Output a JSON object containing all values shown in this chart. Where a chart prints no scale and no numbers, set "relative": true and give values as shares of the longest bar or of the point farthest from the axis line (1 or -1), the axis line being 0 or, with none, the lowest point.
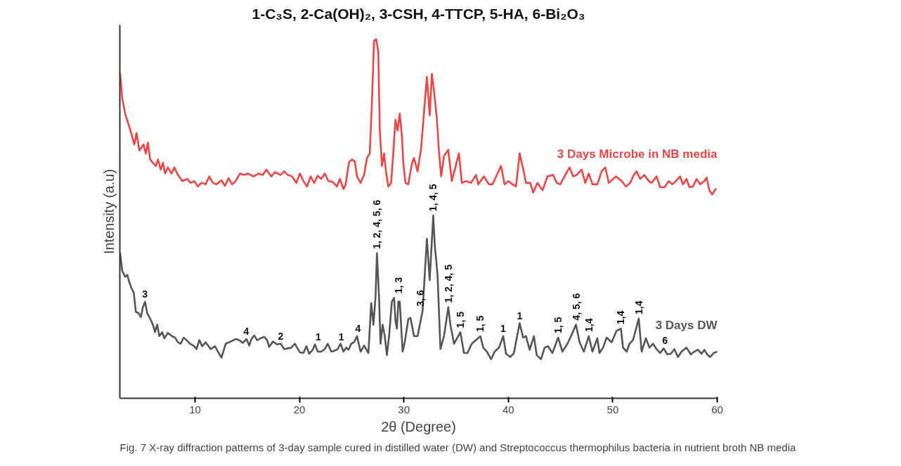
{
  "chart_data": {
    "type": "line",
    "relative": true,
    "title": "1-C₃S, 2-Ca(OH)₂, 3-CSH, 4-TTCP, 5-HA, 6-Bi₂O₃",
    "xlabel": "2θ (Degree)",
    "ylabel": "Intensity (a.u)",
    "xlim": [
      2.8,
      60
    ],
    "xticks": [
      10,
      20,
      30,
      40,
      50,
      60
    ],
    "grid": false,
    "legend": false,
    "marker": "none",
    "line_style": "solid",
    "series": [
      {
        "name": "3 Days Microbe in NB media",
        "color": "#f04444",
        "x": [
          2.83,
          3.03,
          3.31,
          3.65,
          3.99,
          4.19,
          4.4,
          4.67,
          5.08,
          5.29,
          5.49,
          5.7,
          6.24,
          6.45,
          6.72,
          6.93,
          7.13,
          7.4,
          7.75,
          8.02,
          8.29,
          8.77,
          9.25,
          9.59,
          9.93,
          10.27,
          10.61,
          11.02,
          11.37,
          11.71,
          12.05,
          12.53,
          12.87,
          13.21,
          13.55,
          13.89,
          14.3,
          14.71,
          15.05,
          15.6,
          16.08,
          16.49,
          16.83,
          17.31,
          17.65,
          18.2,
          18.54,
          18.88,
          19.29,
          19.7,
          20.04,
          20.38,
          20.72,
          21.07,
          21.41,
          21.75,
          22.09,
          22.43,
          22.77,
          23.18,
          23.59,
          23.87,
          24.21,
          24.41,
          24.75,
          25.03,
          25.3,
          25.51,
          25.85,
          26.19,
          26.46,
          26.73,
          26.94,
          27.14,
          27.35,
          27.55,
          27.69,
          27.9,
          28.1,
          28.31,
          28.51,
          28.78,
          28.99,
          29.19,
          29.4,
          29.6,
          29.81,
          29.95,
          30.15,
          30.42,
          30.77,
          30.97,
          31.31,
          31.65,
          32.2,
          32.47,
          32.68,
          32.88,
          33.16,
          33.36,
          33.57,
          33.84,
          34.25,
          34.59,
          35.27,
          35.55,
          35.96,
          36.43,
          36.91,
          37.12,
          37.66,
          38.14,
          38.48,
          39.3,
          39.64,
          39.99,
          40.4,
          40.74,
          41.08,
          41.42,
          41.69,
          42.1,
          42.38,
          42.79,
          43.27,
          43.74,
          44.29,
          44.63,
          44.97,
          45.52,
          45.86,
          46.2,
          46.54,
          47.02,
          47.36,
          47.7,
          48.05,
          48.52,
          48.93,
          49.28,
          49.62,
          50.3,
          50.85,
          51.26,
          51.67,
          52.01,
          52.28,
          52.62,
          53.03,
          53.44,
          53.72,
          54.19,
          54.54,
          54.95,
          55.36,
          55.7,
          56.04,
          56.45,
          56.72,
          57.06,
          57.34,
          57.68,
          58.02,
          58.36,
          58.77,
          58.98,
          59.25,
          59.52,
          59.86
        ],
        "values": [
          0.904,
          0.835,
          0.793,
          0.761,
          0.729,
          0.707,
          0.739,
          0.69,
          0.707,
          0.682,
          0.712,
          0.665,
          0.647,
          0.665,
          0.637,
          0.656,
          0.626,
          0.643,
          0.626,
          0.643,
          0.626,
          0.605,
          0.611,
          0.6,
          0.605,
          0.59,
          0.6,
          0.596,
          0.618,
          0.6,
          0.596,
          0.607,
          0.592,
          0.613,
          0.596,
          0.605,
          0.626,
          0.622,
          0.626,
          0.618,
          0.626,
          0.622,
          0.637,
          0.618,
          0.63,
          0.622,
          0.632,
          0.622,
          0.618,
          0.6,
          0.626,
          0.605,
          0.59,
          0.618,
          0.6,
          0.62,
          0.611,
          0.626,
          0.605,
          0.603,
          0.59,
          0.611,
          0.583,
          0.594,
          0.658,
          0.665,
          0.66,
          0.618,
          0.6,
          0.622,
          0.669,
          0.682,
          0.825,
          0.996,
          1.0,
          0.964,
          0.75,
          0.647,
          0.682,
          0.626,
          0.59,
          0.6,
          0.686,
          0.776,
          0.746,
          0.793,
          0.729,
          0.654,
          0.6,
          0.596,
          0.654,
          0.669,
          0.632,
          0.697,
          0.895,
          0.788,
          0.904,
          0.857,
          0.778,
          0.686,
          0.618,
          0.675,
          0.692,
          0.605,
          0.682,
          0.6,
          0.605,
          0.6,
          0.622,
          0.596,
          0.618,
          0.596,
          0.596,
          0.647,
          0.596,
          0.605,
          0.596,
          0.59,
          0.682,
          0.639,
          0.6,
          0.6,
          0.573,
          0.6,
          0.579,
          0.618,
          0.622,
          0.6,
          0.596,
          0.626,
          0.643,
          0.618,
          0.622,
          0.637,
          0.6,
          0.626,
          0.596,
          0.596,
          0.632,
          0.643,
          0.6,
          0.618,
          0.605,
          0.59,
          0.6,
          0.622,
          0.632,
          0.611,
          0.622,
          0.605,
          0.6,
          0.618,
          0.588,
          0.588,
          0.605,
          0.596,
          0.605,
          0.618,
          0.596,
          0.611,
          0.588,
          0.59,
          0.611,
          0.596,
          0.605,
          0.615,
          0.579,
          0.568,
          0.583
        ]
      },
      {
        "name": "3 Days DW",
        "color": "#555555",
        "x": [
          2.83,
          3.03,
          3.31,
          3.51,
          3.72,
          3.92,
          4.13,
          4.33,
          4.6,
          4.81,
          5.01,
          5.22,
          5.42,
          5.7,
          5.97,
          6.17,
          6.38,
          6.58,
          6.86,
          7.06,
          7.4,
          7.81,
          8.09,
          8.36,
          8.63,
          8.91,
          9.25,
          9.52,
          9.93,
          10.14,
          10.41,
          10.68,
          11.02,
          11.5,
          11.91,
          12.19,
          12.53,
          12.94,
          13.42,
          13.89,
          14.23,
          14.58,
          14.92,
          15.19,
          15.4,
          15.67,
          15.94,
          16.28,
          16.63,
          16.9,
          17.1,
          17.45,
          17.86,
          18.2,
          18.54,
          18.88,
          19.22,
          19.56,
          19.77,
          20.04,
          20.38,
          20.66,
          20.93,
          21.27,
          21.48,
          21.75,
          22.09,
          22.43,
          22.7,
          23.05,
          23.32,
          23.66,
          23.93,
          24.21,
          24.48,
          24.69,
          24.96,
          25.23,
          25.51,
          25.85,
          26.19,
          26.6,
          26.87,
          27.08,
          27.28,
          27.42,
          27.62,
          27.76,
          27.96,
          28.17,
          28.37,
          28.58,
          28.85,
          29.06,
          29.19,
          29.33,
          29.47,
          29.6,
          29.88,
          30.08,
          30.42,
          30.63,
          30.97,
          31.31,
          31.79,
          32.2,
          32.47,
          32.81,
          32.95,
          33.22,
          33.5,
          33.84,
          34.25,
          34.45,
          34.8,
          35.41,
          35.75,
          36.09,
          36.5,
          37.32,
          37.6,
          37.94,
          38.35,
          38.69,
          39.1,
          39.51,
          39.78,
          40.19,
          40.53,
          41.08,
          41.42,
          41.69,
          42.04,
          42.45,
          42.72,
          43.13,
          43.47,
          43.81,
          44.22,
          44.77,
          45.18,
          45.66,
          46.0,
          46.48,
          46.82,
          47.23,
          47.7,
          48.05,
          48.52,
          48.73,
          49.07,
          49.41,
          49.89,
          50.37,
          50.78,
          50.98,
          51.33,
          51.6,
          51.94,
          52.49,
          52.76,
          53.17,
          53.51,
          53.85,
          54.19,
          54.54,
          54.88,
          55.22,
          55.56,
          55.9,
          56.24,
          56.58,
          57.06,
          57.47,
          57.81,
          58.16,
          58.5,
          58.77,
          59.04,
          59.32,
          59.66,
          60.0
        ],
        "values": [
          0.404,
          0.355,
          0.338,
          0.344,
          0.323,
          0.306,
          0.295,
          0.241,
          0.237,
          0.226,
          0.254,
          0.269,
          0.237,
          0.222,
          0.205,
          0.184,
          0.205,
          0.173,
          0.184,
          0.167,
          0.182,
          0.173,
          0.169,
          0.156,
          0.152,
          0.169,
          0.16,
          0.152,
          0.145,
          0.137,
          0.162,
          0.145,
          0.156,
          0.137,
          0.145,
          0.13,
          0.113,
          0.152,
          0.158,
          0.165,
          0.162,
          0.154,
          0.165,
          0.147,
          0.165,
          0.175,
          0.162,
          0.167,
          0.171,
          0.162,
          0.143,
          0.158,
          0.15,
          0.152,
          0.137,
          0.139,
          0.141,
          0.152,
          0.141,
          0.128,
          0.126,
          0.145,
          0.124,
          0.135,
          0.15,
          0.13,
          0.13,
          0.137,
          0.152,
          0.13,
          0.132,
          0.137,
          0.152,
          0.13,
          0.141,
          0.135,
          0.152,
          0.156,
          0.173,
          0.13,
          0.147,
          0.126,
          0.265,
          0.205,
          0.28,
          0.404,
          0.28,
          0.152,
          0.205,
          0.173,
          0.12,
          0.173,
          0.269,
          0.28,
          0.216,
          0.194,
          0.269,
          0.269,
          0.13,
          0.156,
          0.22,
          0.224,
          0.173,
          0.173,
          0.244,
          0.444,
          0.329,
          0.509,
          0.429,
          0.344,
          0.137,
          0.173,
          0.254,
          0.205,
          0.152,
          0.184,
          0.126,
          0.126,
          0.152,
          0.173,
          0.141,
          0.13,
          0.109,
          0.13,
          0.141,
          0.173,
          0.124,
          0.115,
          0.126,
          0.209,
          0.169,
          0.173,
          0.135,
          0.173,
          0.12,
          0.109,
          0.141,
          0.145,
          0.126,
          0.169,
          0.13,
          0.152,
          0.173,
          0.205,
          0.156,
          0.13,
          0.173,
          0.13,
          0.167,
          0.126,
          0.141,
          0.169,
          0.156,
          0.188,
          0.194,
          0.141,
          0.13,
          0.152,
          0.162,
          0.222,
          0.13,
          0.167,
          0.141,
          0.152,
          0.137,
          0.126,
          0.139,
          0.122,
          0.124,
          0.137,
          0.115,
          0.13,
          0.141,
          0.122,
          0.13,
          0.135,
          0.124,
          0.135,
          0.122,
          0.115,
          0.126,
          0.13
        ]
      }
    ],
    "annotations": [
      {
        "text": "3",
        "x": 5.2,
        "y": 0.269
      },
      {
        "text": "4",
        "x": 14.9,
        "y": 0.165
      },
      {
        "text": "2",
        "x": 18.2,
        "y": 0.152
      },
      {
        "text": "1",
        "x": 21.8,
        "y": 0.15
      },
      {
        "text": "1",
        "x": 24.0,
        "y": 0.15
      },
      {
        "text": "4",
        "x": 25.6,
        "y": 0.173
      },
      {
        "text": "1, 2, 4, 5, 6",
        "x": 27.42,
        "y": 0.404
      },
      {
        "text": "1, 3",
        "x": 29.5,
        "y": 0.28
      },
      {
        "text": "3, 6",
        "x": 31.6,
        "y": 0.244
      },
      {
        "text": "1, 4, 5",
        "x": 32.81,
        "y": 0.509
      },
      {
        "text": "1, 2, 4, 5",
        "x": 34.25,
        "y": 0.254
      },
      {
        "text": "1, 5",
        "x": 35.41,
        "y": 0.184
      },
      {
        "text": "1, 5",
        "x": 37.32,
        "y": 0.173
      },
      {
        "text": "1",
        "x": 39.51,
        "y": 0.173
      },
      {
        "text": "1",
        "x": 41.08,
        "y": 0.209
      },
      {
        "text": "1, 5",
        "x": 44.77,
        "y": 0.169
      },
      {
        "text": "4, 5, 6",
        "x": 46.48,
        "y": 0.205
      },
      {
        "text": "1,4",
        "x": 47.7,
        "y": 0.173
      },
      {
        "text": "1,4",
        "x": 50.78,
        "y": 0.194
      },
      {
        "text": "1,4",
        "x": 52.49,
        "y": 0.222
      },
      {
        "text": "6",
        "x": 55.0,
        "y": 0.14
      },
      "Fig. 7  X-ray diffraction patterns of 3-day sample cured in distilled water (DW) and Streptococcus thermophilus bacteria in nutrient broth NB media"
    ]
  }
}
